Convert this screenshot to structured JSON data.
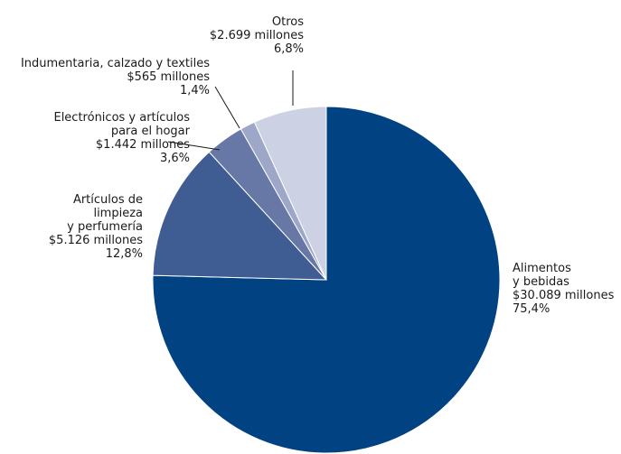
{
  "chart_data": {
    "type": "pie",
    "unit_note": "",
    "slices": [
      {
        "label": [
          "Alimentos",
          "y bebidas"
        ],
        "amount": "$30.089 millones",
        "percent_text": "75,4%",
        "value": 75.4,
        "color": "#004282"
      },
      {
        "label": [
          "Artículos de",
          "limpieza",
          "y perfumería"
        ],
        "amount": "$5.126 millones",
        "percent_text": "12,8%",
        "value": 12.8,
        "color": "#3f5d92"
      },
      {
        "label": [
          "Electrónicos y artículos",
          "para el hogar"
        ],
        "amount": "$1.442 millones",
        "percent_text": "3,6%",
        "value": 3.6,
        "color": "#6878a6"
      },
      {
        "label": [
          "Indumentaria, calzado y textiles"
        ],
        "amount": "$565 millones",
        "percent_text": "1,4%",
        "value": 1.4,
        "color": "#9da7c8"
      },
      {
        "label": [
          "Otros"
        ],
        "amount": "$2.699 millones",
        "percent_text": "6,8%",
        "value": 6.8,
        "color": "#cdd1e4"
      }
    ]
  }
}
